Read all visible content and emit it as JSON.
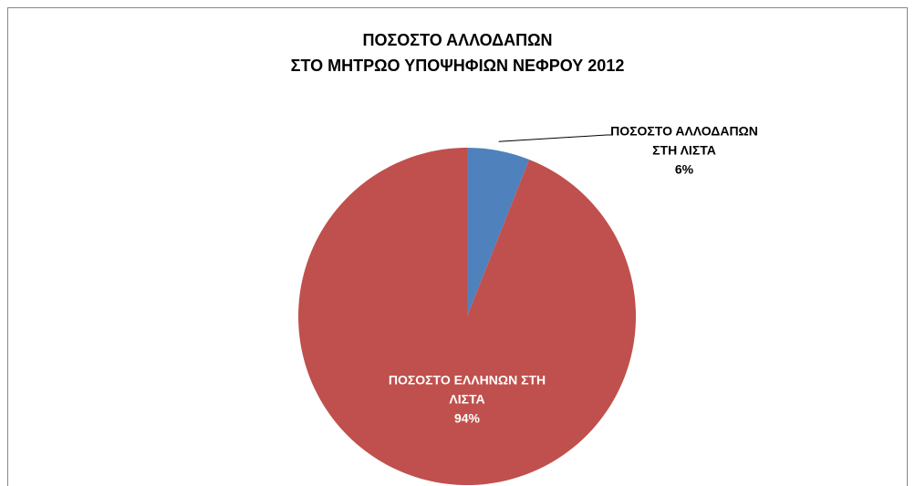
{
  "chart_data": {
    "type": "pie",
    "title": [
      "ΠΟΣΟΣΤΟ ΑΛΛΟΔΑΠΩΝ",
      "ΣΤΟ ΜΗΤΡΩΟ  ΥΠΟΨΗΦΙΩΝ ΝΕΦΡΟΥ 2012"
    ],
    "categories": [
      "ΠΟΣΟΣΤΟ ΑΛΛΟΔΑΠΩΝ ΣΤΗ ΛΙΣΤΑ",
      "ΠΟΣΟΣΤΟ ΕΛΛΗΝΩΝ ΣΤΗ ΛΙΣΤΑ"
    ],
    "values": [
      6,
      94
    ],
    "value_labels": [
      "6%",
      "94%"
    ],
    "colors": [
      "#4f81bd",
      "#c0504d"
    ]
  }
}
